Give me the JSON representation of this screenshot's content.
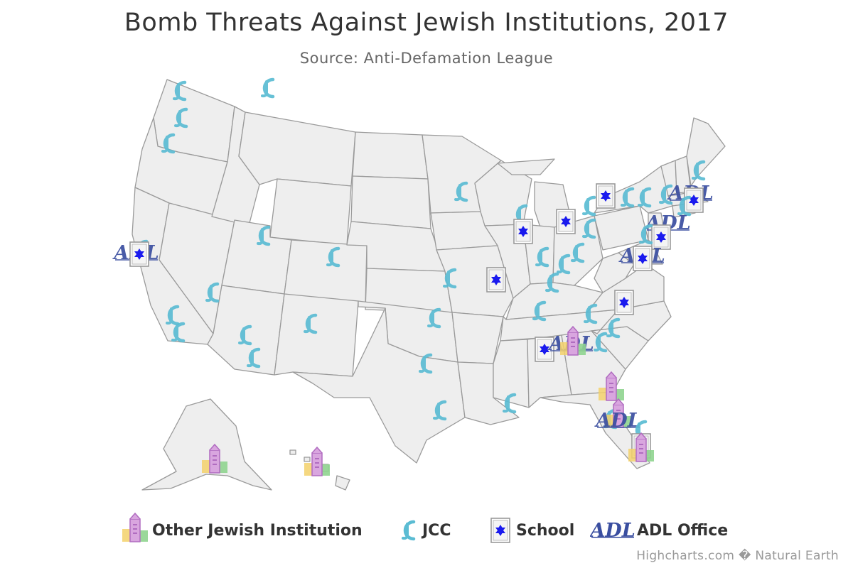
{
  "title": "Bomb Threats Against Jewish Institutions, 2017",
  "subtitle": "Source: Anti-Defamation League",
  "credits": "Highcharts.com � Natural Earth",
  "legend": [
    {
      "key": "other",
      "label": "Other Jewish Institution",
      "icon": "building-icon"
    },
    {
      "key": "jcc",
      "label": "JCC",
      "icon": "jcc-logo-icon"
    },
    {
      "key": "school",
      "label": "School",
      "icon": "school-star-icon"
    },
    {
      "key": "adl",
      "label": "ADL Office",
      "icon": "adl-logo-icon"
    }
  ],
  "colors": {
    "land": "#eeeeee",
    "border": "#9a9a9a",
    "jcc": "#5bbcd3",
    "school_star": "#1a1aee",
    "adl": "#3a4ea0",
    "building_pink": "#c77fd0",
    "building_yellow": "#f3d16b",
    "building_green": "#8fd48f"
  }
}
